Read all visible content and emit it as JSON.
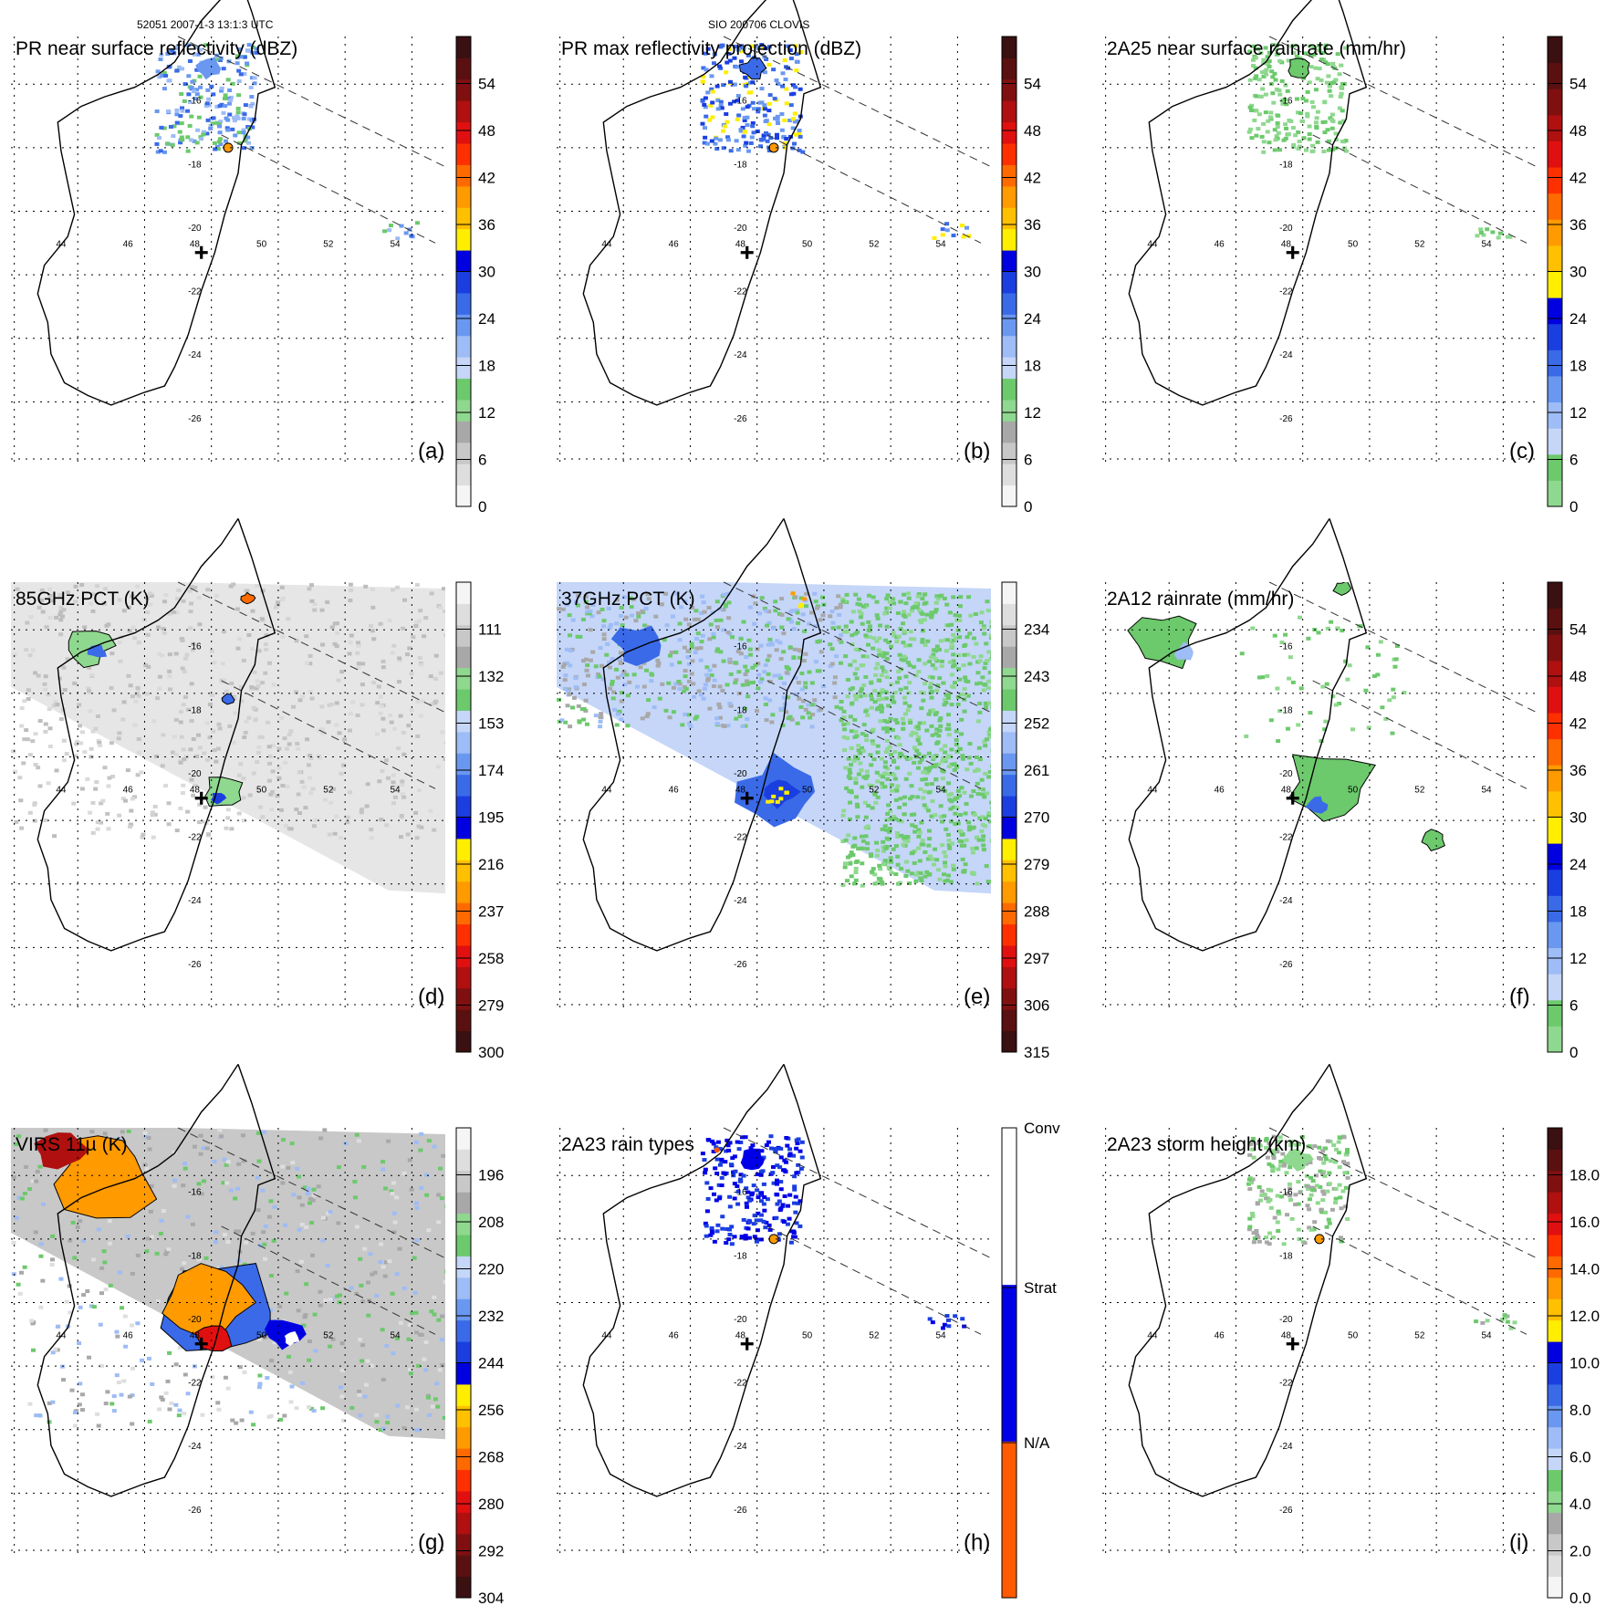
{
  "header": {
    "orbit_time": "52051 2007-1-3 13:1:3 UTC",
    "storm_id": "SIO 200706 CLOVIS"
  },
  "map": {
    "lon_ticks": [
      "44",
      "46",
      "48",
      "50",
      "52",
      "54"
    ],
    "lat_ticks": [
      "-16",
      "-18",
      "-20",
      "-22",
      "-24",
      "-26"
    ],
    "storm_center": {
      "lon": 48.2,
      "lat": -20.8
    }
  },
  "chart_data": [
    {
      "type": "heatmap",
      "panel": "(a)",
      "title": "PR near surface reflectivity (dBZ)",
      "colorbar_ticks": [
        "54",
        "48",
        "42",
        "36",
        "30",
        "24",
        "18",
        "12",
        "6",
        "0"
      ],
      "colors": [
        "#f5f5f5",
        "#dedede",
        "#c8c8c8",
        "#a8a8a8",
        "#8fd88f",
        "#6cc96c",
        "#c5d6f8",
        "#9ebcf5",
        "#6a98f0",
        "#3a6ae8",
        "#1a3ee0",
        "#0000e0",
        "#ffee00",
        "#ffc000",
        "#ff9a00",
        "#ff6a00",
        "#ff3000",
        "#e01010",
        "#b01010",
        "#801010",
        "#5a1010",
        "#3a1010"
      ]
    },
    {
      "type": "heatmap",
      "panel": "(b)",
      "title": "PR max reflectivity projection (dBZ)",
      "colorbar_ticks": [
        "54",
        "48",
        "42",
        "36",
        "30",
        "24",
        "18",
        "12",
        "6",
        "0"
      ],
      "colors": [
        "#f5f5f5",
        "#dedede",
        "#c8c8c8",
        "#a8a8a8",
        "#8fd88f",
        "#6cc96c",
        "#c5d6f8",
        "#9ebcf5",
        "#6a98f0",
        "#3a6ae8",
        "#1a3ee0",
        "#0000e0",
        "#ffee00",
        "#ffc000",
        "#ff9a00",
        "#ff6a00",
        "#ff3000",
        "#e01010",
        "#b01010",
        "#801010",
        "#5a1010",
        "#3a1010"
      ]
    },
    {
      "type": "heatmap",
      "panel": "(c)",
      "title": "2A25 near surface rainrate (mm/hr)",
      "colorbar_ticks": [
        "54",
        "48",
        "42",
        "36",
        "30",
        "24",
        "18",
        "12",
        "6",
        "0"
      ],
      "colors": [
        "#8fd88f",
        "#6cc96c",
        "#c5d6f8",
        "#9ebcf5",
        "#6a98f0",
        "#3a6ae8",
        "#1a3ee0",
        "#0000e0",
        "#ffee00",
        "#ffc000",
        "#ff9a00",
        "#ff6a00",
        "#ff3000",
        "#e01010",
        "#b01010",
        "#801010",
        "#5a1010",
        "#3a1010"
      ]
    },
    {
      "type": "heatmap",
      "panel": "(d)",
      "title": "85GHz PCT (K)",
      "colorbar_ticks": [
        "111",
        "132",
        "153",
        "174",
        "195",
        "216",
        "237",
        "258",
        "279",
        "300"
      ],
      "colors": [
        "#3a1010",
        "#5a1010",
        "#801010",
        "#b01010",
        "#e01010",
        "#ff3000",
        "#ff6a00",
        "#ff9a00",
        "#ffc000",
        "#ffee00",
        "#0000e0",
        "#1a3ee0",
        "#3a6ae8",
        "#6a98f0",
        "#9ebcf5",
        "#c5d6f8",
        "#6cc96c",
        "#8fd88f",
        "#a8a8a8",
        "#c8c8c8",
        "#dedede",
        "#f5f5f5"
      ]
    },
    {
      "type": "heatmap",
      "panel": "(e)",
      "title": "37GHz PCT (K)",
      "colorbar_ticks": [
        "234",
        "243",
        "252",
        "261",
        "270",
        "279",
        "288",
        "297",
        "306",
        "315"
      ],
      "colors": [
        "#3a1010",
        "#5a1010",
        "#801010",
        "#b01010",
        "#e01010",
        "#ff3000",
        "#ff6a00",
        "#ff9a00",
        "#ffc000",
        "#ffee00",
        "#0000e0",
        "#1a3ee0",
        "#3a6ae8",
        "#6a98f0",
        "#9ebcf5",
        "#c5d6f8",
        "#6cc96c",
        "#8fd88f",
        "#a8a8a8",
        "#c8c8c8",
        "#dedede",
        "#f5f5f5"
      ]
    },
    {
      "type": "heatmap",
      "panel": "(f)",
      "title": "2A12 rainrate (mm/hr)",
      "colorbar_ticks": [
        "54",
        "48",
        "42",
        "36",
        "30",
        "24",
        "18",
        "12",
        "6",
        "0"
      ],
      "colors": [
        "#8fd88f",
        "#6cc96c",
        "#c5d6f8",
        "#9ebcf5",
        "#6a98f0",
        "#3a6ae8",
        "#1a3ee0",
        "#0000e0",
        "#ffee00",
        "#ffc000",
        "#ff9a00",
        "#ff6a00",
        "#ff3000",
        "#e01010",
        "#b01010",
        "#801010",
        "#5a1010",
        "#3a1010"
      ]
    },
    {
      "type": "heatmap",
      "panel": "(g)",
      "title": "VIRS 11µ (K)",
      "colorbar_ticks": [
        "196",
        "208",
        "220",
        "232",
        "244",
        "256",
        "268",
        "280",
        "292",
        "304"
      ],
      "colors": [
        "#3a1010",
        "#5a1010",
        "#801010",
        "#b01010",
        "#e01010",
        "#ff3000",
        "#ff6a00",
        "#ff9a00",
        "#ffc000",
        "#ffee00",
        "#0000e0",
        "#1a3ee0",
        "#3a6ae8",
        "#6a98f0",
        "#9ebcf5",
        "#c5d6f8",
        "#6cc96c",
        "#8fd88f",
        "#a8a8a8",
        "#c8c8c8",
        "#dedede",
        "#f5f5f5"
      ]
    },
    {
      "type": "heatmap",
      "panel": "(h)",
      "title": "2A23 rain types",
      "colorbar_ticks": [
        "Conv",
        "Strat",
        "N/A"
      ],
      "colors": [
        "#ff5a00",
        "#0000e8",
        "#ffffff"
      ]
    },
    {
      "type": "heatmap",
      "panel": "(i)",
      "title": "2A23 storm height (km)",
      "colorbar_ticks": [
        "18.0",
        "16.0",
        "14.0",
        "12.0",
        "10.0",
        "8.0",
        "6.0",
        "4.0",
        "2.0",
        "0.0"
      ],
      "colors": [
        "#f5f5f5",
        "#dedede",
        "#c8c8c8",
        "#a8a8a8",
        "#8fd88f",
        "#6cc96c",
        "#c5d6f8",
        "#9ebcf5",
        "#6a98f0",
        "#3a6ae8",
        "#1a3ee0",
        "#0000e0",
        "#ffee00",
        "#ffc000",
        "#ff9a00",
        "#ff6a00",
        "#ff3000",
        "#e01010",
        "#b01010",
        "#801010",
        "#5a1010",
        "#3a1010"
      ]
    }
  ]
}
